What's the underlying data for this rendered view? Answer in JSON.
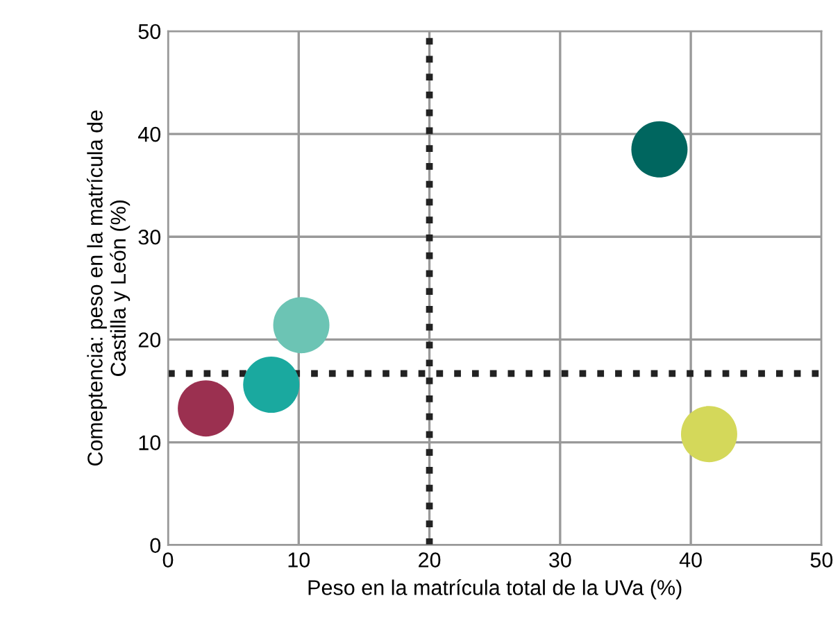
{
  "chart_data": {
    "type": "scatter",
    "xlabel": "Peso en la matrícula total de la UVa (%)",
    "ylabel": "Comeptencia: peso en la matrícula de\nCastilla y León (%)",
    "x": [
      37.6,
      10.2,
      7.9,
      2.9,
      41.4
    ],
    "values": [
      38.5,
      21.4,
      15.6,
      13.3,
      10.8
    ],
    "colors": [
      "#00665f",
      "#6cc4b4",
      "#1aa99f",
      "#9b3050",
      "#d4d85a"
    ],
    "xlim": [
      0,
      50
    ],
    "ylim": [
      0,
      50
    ],
    "xticks": [
      0,
      10,
      20,
      30,
      40,
      50
    ],
    "yticks": [
      0,
      10,
      20,
      30,
      40,
      50
    ],
    "grid": true,
    "marker": "circle",
    "ref_lines": [
      {
        "axis": "x",
        "value": 20,
        "color": "#222222",
        "line_style": "dotted"
      },
      {
        "axis": "y",
        "value": 16.7,
        "color": "#222222",
        "line_style": "dotted"
      }
    ]
  }
}
